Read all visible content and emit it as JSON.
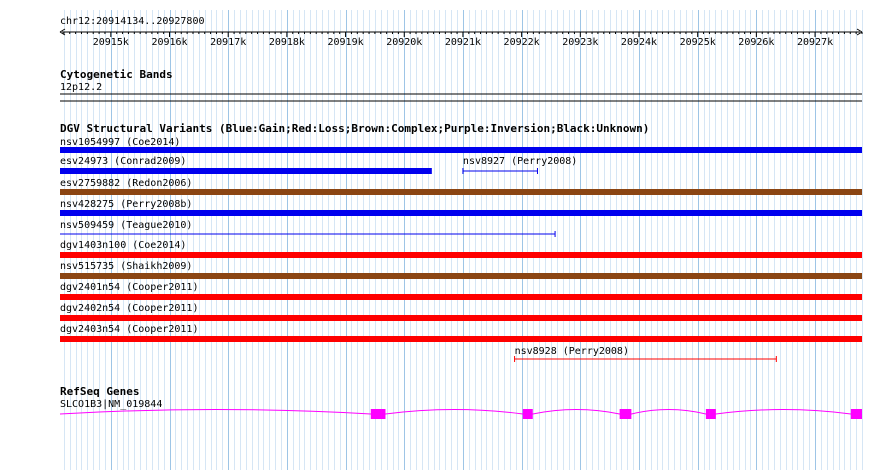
{
  "view": {
    "location": "chr12:20914134..20927800",
    "start": 20914134,
    "end": 20927800
  },
  "ruler": {
    "ticks": [
      {
        "pos": 20915000,
        "label": "20915k"
      },
      {
        "pos": 20916000,
        "label": "20916k"
      },
      {
        "pos": 20917000,
        "label": "20917k"
      },
      {
        "pos": 20918000,
        "label": "20918k"
      },
      {
        "pos": 20919000,
        "label": "20919k"
      },
      {
        "pos": 20920000,
        "label": "20920k"
      },
      {
        "pos": 20921000,
        "label": "20921k"
      },
      {
        "pos": 20922000,
        "label": "20922k"
      },
      {
        "pos": 20923000,
        "label": "20923k"
      },
      {
        "pos": 20924000,
        "label": "20924k"
      },
      {
        "pos": 20925000,
        "label": "20925k"
      },
      {
        "pos": 20926000,
        "label": "20926k"
      },
      {
        "pos": 20927000,
        "label": "20927k"
      }
    ]
  },
  "cytoband": {
    "title": "Cytogenetic Bands",
    "band": "12p12.2"
  },
  "dgv": {
    "title": "DGV Structural Variants (Blue:Gain;Red:Loss;Brown:Complex;Purple:Inversion;Black:Unknown)",
    "colors": {
      "gain": "#0000ee",
      "loss": "#ff0000",
      "complex": "#8b4513"
    },
    "variants": [
      {
        "label": "nsv1054997 (Coe2014)",
        "type": "gain",
        "style": "bar",
        "start": 20914134,
        "end": 20927800
      },
      {
        "label": "esv24973 (Conrad2009)",
        "type": "gain",
        "style": "bar",
        "start": 20914134,
        "end": 20920470
      },
      {
        "label": "nsv8927 (Perry2008)",
        "type": "gain",
        "style": "line",
        "start": 20921000,
        "end": 20922270
      },
      {
        "label": "esv2759882 (Redon2006)",
        "type": "complex",
        "style": "bar",
        "start": 20914134,
        "end": 20927800
      },
      {
        "label": "nsv428275 (Perry2008b)",
        "type": "gain",
        "style": "bar",
        "start": 20914134,
        "end": 20927800
      },
      {
        "label": "nsv509459 (Teague2010)",
        "type": "gain",
        "style": "thin",
        "start": 20914134,
        "end": 20922570
      },
      {
        "label": "dgv1403n100 (Coe2014)",
        "type": "loss",
        "style": "bar",
        "start": 20914134,
        "end": 20927800
      },
      {
        "label": "nsv515735 (Shaikh2009)",
        "type": "complex",
        "style": "bar",
        "start": 20914134,
        "end": 20927800
      },
      {
        "label": "dgv2401n54 (Cooper2011)",
        "type": "loss",
        "style": "bar",
        "start": 20914134,
        "end": 20927800
      },
      {
        "label": "dgv2402n54 (Cooper2011)",
        "type": "loss",
        "style": "bar",
        "start": 20914134,
        "end": 20927800
      },
      {
        "label": "dgv2403n54 (Cooper2011)",
        "type": "loss",
        "style": "bar",
        "start": 20914134,
        "end": 20927800
      },
      {
        "label": "nsv8928 (Perry2008)",
        "type": "loss",
        "style": "line",
        "start": 20921880,
        "end": 20926340
      }
    ]
  },
  "refseq": {
    "title": "RefSeq Genes",
    "gene_label": "SLCO1B3|NM_019844",
    "color": "#ff00ff",
    "start": 20914134,
    "end": 20927800,
    "exons": [
      {
        "start": 20919430,
        "end": 20919680
      },
      {
        "start": 20922020,
        "end": 20922190
      },
      {
        "start": 20923670,
        "end": 20923870
      },
      {
        "start": 20925140,
        "end": 20925310
      },
      {
        "start": 20927610,
        "end": 20927800
      }
    ]
  }
}
